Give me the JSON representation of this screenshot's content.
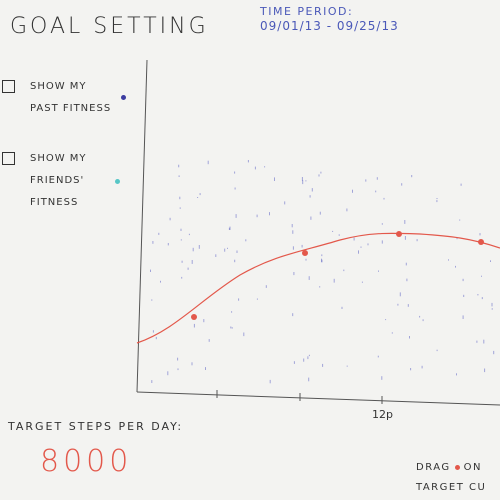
{
  "header": {
    "title": "Goal Setting",
    "period_label": "Time Period:",
    "period_range": "09/01/13 - 09/25/13"
  },
  "options": [
    {
      "label_lines": [
        "Show my",
        "Past Fitness"
      ],
      "checked": false,
      "dot_color": "#3c3ca0"
    },
    {
      "label_lines": [
        "Show my",
        "Friends'",
        "Fitness"
      ],
      "checked": false,
      "dot_color": "#57c6c6"
    }
  ],
  "target": {
    "label": "Target steps per day:",
    "value": "8000",
    "value_color": "#e3584b"
  },
  "chart": {
    "tick_label": "12p",
    "curve_color": "#e3584b",
    "scatter_color": "#6a70c8"
  },
  "hint": {
    "prefix": "Drag",
    "suffix": "on",
    "line2": "Target Cu"
  }
}
